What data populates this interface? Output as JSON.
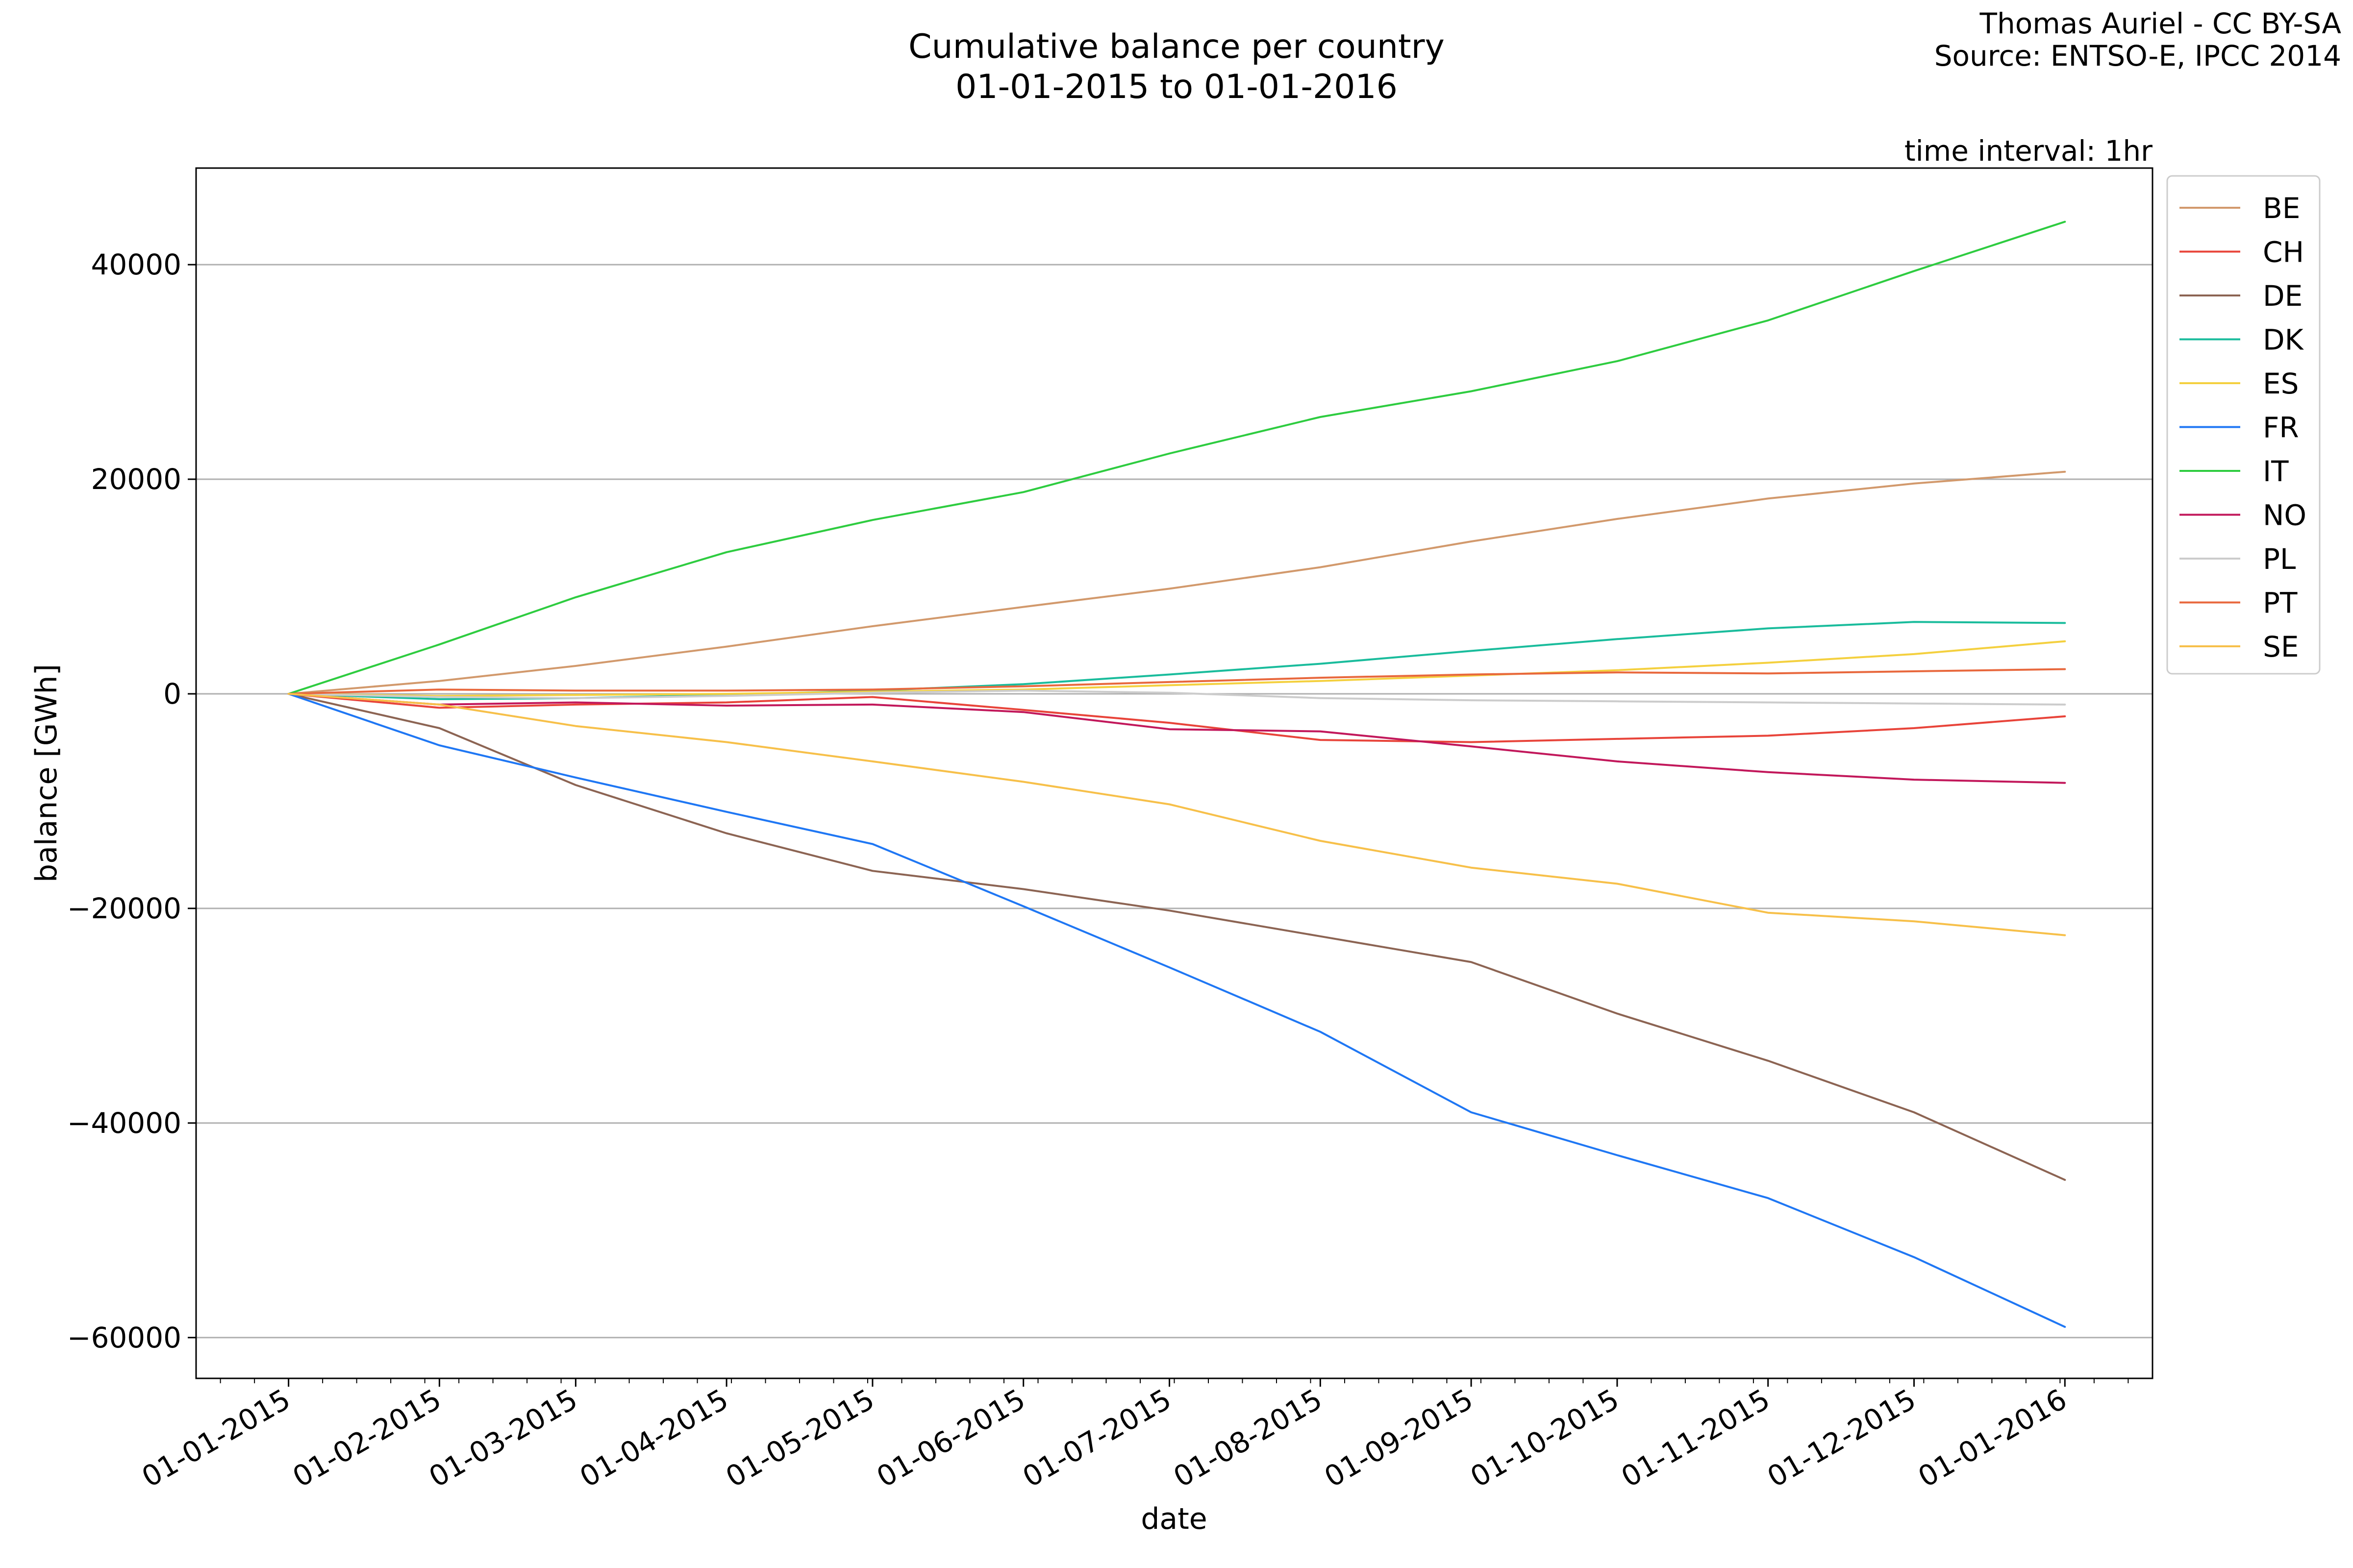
{
  "chart_data": {
    "type": "line",
    "title_lines": [
      "Cumulative balance per country",
      "01-01-2015 to 01-01-2016"
    ],
    "credit_lines": [
      "Thomas Auriel - CC BY-SA",
      "Source: ENTSO-E, IPCC 2014"
    ],
    "note": "time interval: 1hr",
    "xlabel": "date",
    "ylabel": "balance [GWh]",
    "ylim": [
      -63800,
      49000
    ],
    "xlim": [
      "2014-12-13",
      "2016-01-19"
    ],
    "grid": "horizontal",
    "legend_position": "right",
    "x_ticks": [
      {
        "date": "2015-01-01",
        "label": "01-01-2015"
      },
      {
        "date": "2015-02-01",
        "label": "01-02-2015"
      },
      {
        "date": "2015-03-01",
        "label": "01-03-2015"
      },
      {
        "date": "2015-04-01",
        "label": "01-04-2015"
      },
      {
        "date": "2015-05-01",
        "label": "01-05-2015"
      },
      {
        "date": "2015-06-01",
        "label": "01-06-2015"
      },
      {
        "date": "2015-07-01",
        "label": "01-07-2015"
      },
      {
        "date": "2015-08-01",
        "label": "01-08-2015"
      },
      {
        "date": "2015-09-01",
        "label": "01-09-2015"
      },
      {
        "date": "2015-10-01",
        "label": "01-10-2015"
      },
      {
        "date": "2015-11-01",
        "label": "01-11-2015"
      },
      {
        "date": "2015-12-01",
        "label": "01-12-2015"
      },
      {
        "date": "2016-01-01",
        "label": "01-01-2016"
      }
    ],
    "y_ticks": [
      {
        "value": 40000,
        "label": "40000"
      },
      {
        "value": 20000,
        "label": "20000"
      },
      {
        "value": 0,
        "label": "0"
      },
      {
        "value": -20000,
        "label": "−20000"
      },
      {
        "value": -40000,
        "label": "−40000"
      },
      {
        "value": -60000,
        "label": "−60000"
      }
    ],
    "x": [
      "2015-01-01",
      "2015-02-01",
      "2015-03-01",
      "2015-04-01",
      "2015-05-01",
      "2015-06-01",
      "2015-07-01",
      "2015-08-01",
      "2015-09-01",
      "2015-10-01",
      "2015-11-01",
      "2015-12-01",
      "2016-01-01"
    ],
    "series": [
      {
        "name": "BE",
        "color": "#d2996c",
        "values": [
          0,
          1200,
          2600,
          4400,
          6300,
          8100,
          9800,
          11800,
          14200,
          16300,
          18200,
          19600,
          20700
        ]
      },
      {
        "name": "CH",
        "color": "#e8443a",
        "values": [
          0,
          -1300,
          -1000,
          -800,
          -300,
          -1500,
          -2700,
          -4300,
          -4500,
          -4200,
          -3900,
          -3200,
          -2100
        ]
      },
      {
        "name": "DE",
        "color": "#8c6453",
        "values": [
          0,
          -3200,
          -8500,
          -13000,
          -16500,
          -18200,
          -20200,
          -22600,
          -25000,
          -29800,
          -34200,
          -39000,
          -45300
        ]
      },
      {
        "name": "DK",
        "color": "#1abc9c",
        "values": [
          0,
          -500,
          -400,
          -100,
          300,
          900,
          1800,
          2800,
          4000,
          5100,
          6100,
          6700,
          6600
        ]
      },
      {
        "name": "ES",
        "color": "#f4d03f",
        "values": [
          0,
          -200,
          -100,
          0,
          200,
          400,
          800,
          1200,
          1700,
          2200,
          2900,
          3700,
          4900
        ]
      },
      {
        "name": "FR",
        "color": "#1f77f4",
        "values": [
          0,
          -4800,
          -7800,
          -11000,
          -14000,
          -19800,
          -25500,
          -31500,
          -39000,
          -43000,
          -47000,
          -52500,
          -59000
        ]
      },
      {
        "name": "IT",
        "color": "#2ecc40",
        "values": [
          0,
          4600,
          9000,
          13200,
          16200,
          18800,
          22400,
          25800,
          28200,
          31000,
          34800,
          39400,
          44000
        ]
      },
      {
        "name": "NO",
        "color": "#c2185b",
        "values": [
          0,
          -1000,
          -800,
          -1100,
          -1000,
          -1700,
          -3300,
          -3500,
          -4900,
          -6300,
          -7300,
          -8000,
          -8300
        ]
      },
      {
        "name": "PL",
        "color": "#cccccc",
        "values": [
          0,
          -300,
          -400,
          -200,
          100,
          300,
          100,
          -400,
          -600,
          -700,
          -800,
          -900,
          -1000
        ]
      },
      {
        "name": "PT",
        "color": "#e8683d",
        "values": [
          0,
          400,
          300,
          300,
          400,
          700,
          1100,
          1500,
          1800,
          2000,
          1900,
          2100,
          2300
        ]
      },
      {
        "name": "SE",
        "color": "#f7c04a",
        "values": [
          0,
          -1000,
          -3000,
          -4500,
          -6300,
          -8200,
          -10300,
          -13700,
          -16200,
          -17700,
          -20400,
          -21200,
          -22500
        ]
      }
    ]
  }
}
